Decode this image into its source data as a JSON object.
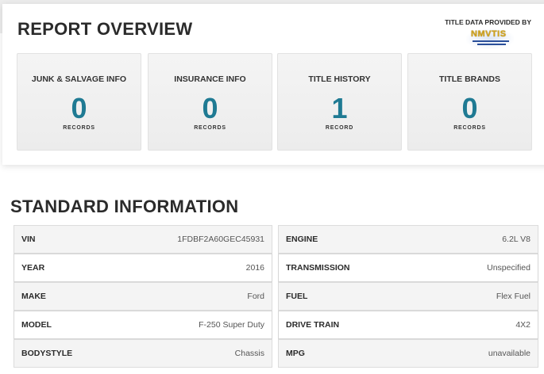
{
  "overview": {
    "title": "REPORT OVERVIEW",
    "provider_label": "TITLE DATA PROVIDED BY",
    "provider_logo_text": "NMVTIS",
    "cards": [
      {
        "label": "JUNK & SALVAGE INFO",
        "count": "0",
        "unit": "RECORDS"
      },
      {
        "label": "INSURANCE INFO",
        "count": "0",
        "unit": "RECORDS"
      },
      {
        "label": "TITLE HISTORY",
        "count": "1",
        "unit": "RECORD"
      },
      {
        "label": "TITLE BRANDS",
        "count": "0",
        "unit": "RECORDS"
      }
    ],
    "accent_color": "#1f7a93"
  },
  "standard": {
    "title": "STANDARD INFORMATION",
    "left": [
      {
        "k": "VIN",
        "v": "1FDBF2A60GEC45931"
      },
      {
        "k": "YEAR",
        "v": "2016"
      },
      {
        "k": "MAKE",
        "v": "Ford"
      },
      {
        "k": "MODEL",
        "v": "F-250 Super Duty"
      },
      {
        "k": "BODYSTYLE",
        "v": "Chassis"
      }
    ],
    "right": [
      {
        "k": "ENGINE",
        "v": "6.2L V8"
      },
      {
        "k": "TRANSMISSION",
        "v": "Unspecified"
      },
      {
        "k": "FUEL",
        "v": "Flex Fuel"
      },
      {
        "k": "DRIVE TRAIN",
        "v": "4X2"
      },
      {
        "k": "MPG",
        "v": "unavailable"
      }
    ]
  }
}
